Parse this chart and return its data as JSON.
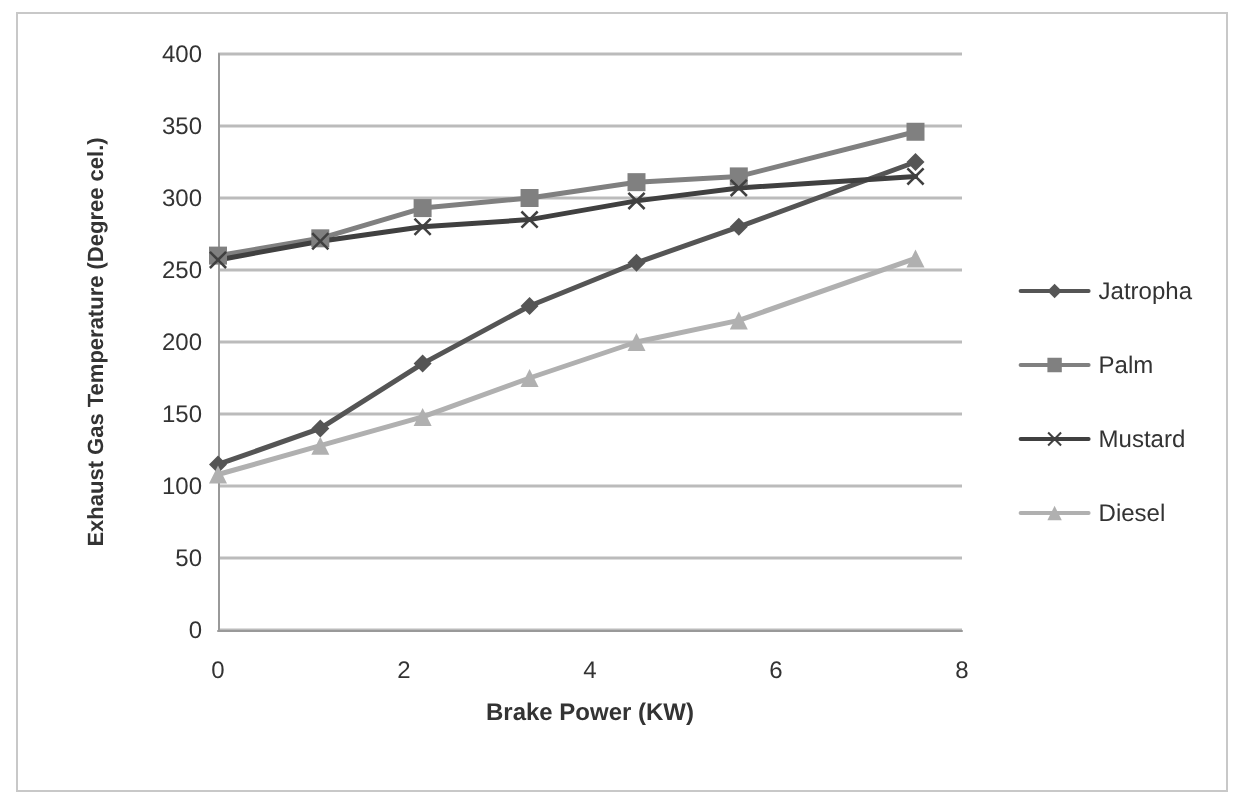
{
  "chart_data": {
    "type": "line",
    "xlabel": "Brake Power (KW)",
    "ylabel": "Exhaust Gas Temperature (Degree cel.)",
    "x": [
      0,
      1.1,
      2.2,
      3.35,
      4.5,
      5.6,
      7.5
    ],
    "series": [
      {
        "name": "Jatropha",
        "color": "#555555",
        "marker": "diamond",
        "values": [
          115,
          140,
          185,
          225,
          255,
          280,
          325
        ]
      },
      {
        "name": "Palm",
        "color": "#808080",
        "marker": "square",
        "values": [
          260,
          272,
          293,
          300,
          311,
          315,
          346
        ]
      },
      {
        "name": "Mustard",
        "color": "#404040",
        "marker": "cross",
        "values": [
          257,
          270,
          280,
          285,
          298,
          307,
          315
        ]
      },
      {
        "name": "Diesel",
        "color": "#b0b0b0",
        "marker": "triangle",
        "values": [
          108,
          128,
          148,
          175,
          200,
          215,
          258
        ]
      }
    ],
    "xlim": [
      0,
      8
    ],
    "xticks": [
      0,
      2,
      4,
      6,
      8
    ],
    "ylim": [
      0,
      400
    ],
    "yticks": [
      0,
      50,
      100,
      150,
      200,
      250,
      300,
      350,
      400
    ],
    "grid": "y",
    "legend": "right",
    "line_style": "solid"
  }
}
